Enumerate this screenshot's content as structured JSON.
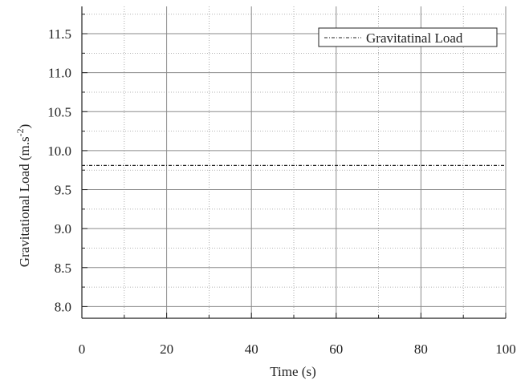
{
  "chart_data": {
    "type": "line",
    "title": "",
    "xlabel": "Time (s)",
    "ylabel": "Gravitational Load (m.s",
    "ylabel_sup": "-2",
    "ylabel_close": ")",
    "xlim": [
      0,
      100
    ],
    "ylim": [
      7.85,
      11.85
    ],
    "x_ticks": [
      0,
      20,
      40,
      60,
      80,
      100
    ],
    "x_minor_ticks": [
      10,
      30,
      50,
      70,
      90
    ],
    "y_ticks": [
      8.0,
      8.5,
      9.0,
      9.5,
      10.0,
      10.5,
      11.0,
      11.5
    ],
    "y_minor_ticks": [
      8.25,
      8.75,
      9.25,
      9.75,
      10.25,
      10.75,
      11.25,
      11.75
    ],
    "x_tick_labels": [
      "0",
      "20",
      "40",
      "60",
      "80",
      "100"
    ],
    "y_tick_labels": [
      "8.0",
      "8.5",
      "9.0",
      "9.5",
      "10.0",
      "10.5",
      "11.0",
      "11.5"
    ],
    "grid": true,
    "legend_position": "top-right",
    "series": [
      {
        "name": "Gravitatinal Load",
        "style": "dash-dot",
        "color": "#222222",
        "x": [
          0,
          100
        ],
        "y": [
          9.81,
          9.81
        ]
      }
    ]
  }
}
